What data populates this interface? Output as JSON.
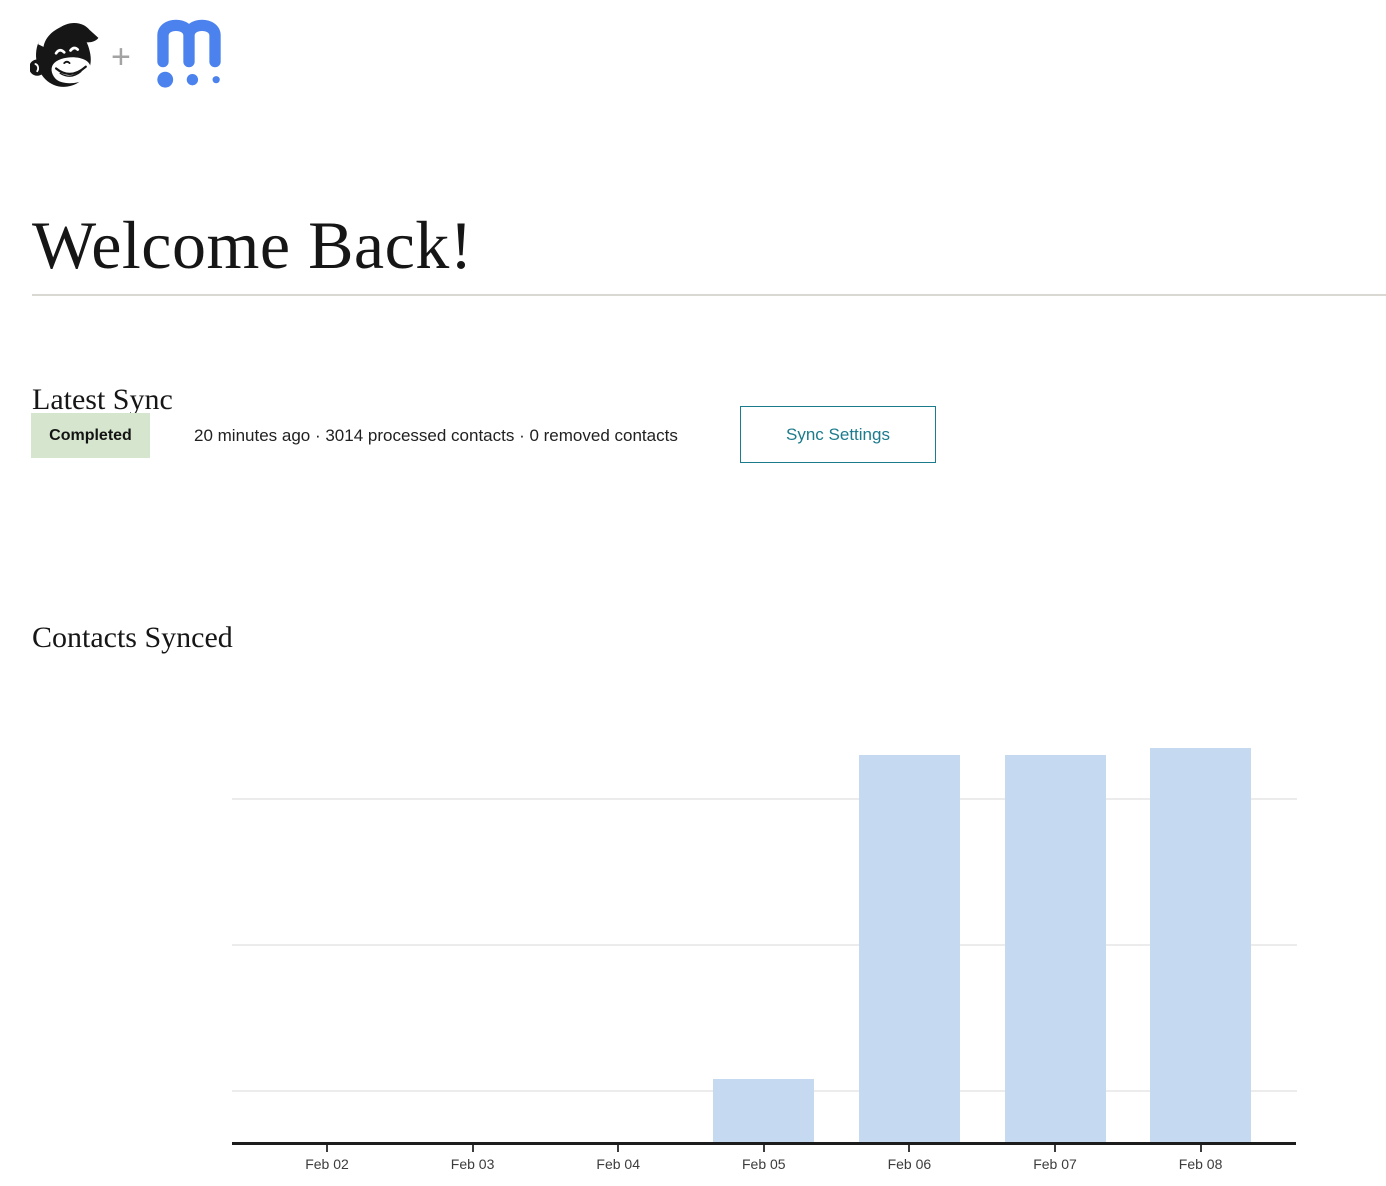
{
  "header": {
    "plus_separator": "+",
    "icons": {
      "mailchimp_logo": "mailchimp-freddie-monkey",
      "partner_logo": "blue-m-with-three-dots"
    }
  },
  "page_title": "Welcome Back!",
  "latest_sync": {
    "heading": "Latest Sync",
    "status_badge": "Completed",
    "summary": "20 minutes ago · 3014 processed contacts · 0 removed contacts",
    "sync_settings_button": "Sync Settings"
  },
  "contacts_synced": {
    "heading": "Contacts Synced"
  },
  "chart_data": {
    "type": "bar",
    "title": "Contacts Synced",
    "categories": [
      "Feb 02",
      "Feb 03",
      "Feb 04",
      "Feb 05",
      "Feb 06",
      "Feb 07",
      "Feb 08"
    ],
    "values": [
      0,
      0,
      0,
      12.9,
      79.5,
      79.5,
      80.9
    ],
    "value_unit": "percent_of_plot_height",
    "xlabel": "",
    "ylabel": "",
    "ylim": [
      0,
      100
    ],
    "y_axis_labels": [],
    "gridlines_y": [
      10.3,
      40.2,
      70.2
    ],
    "grid": true,
    "legend": false,
    "bar_color": "#c5daf1"
  },
  "colors": {
    "accent_teal": "#1c7b8c",
    "badge_bg_green": "#d6e6ce",
    "bar_blue": "#c5daf1",
    "logo_blue": "#4b82ed",
    "axis_line": "#1c1c1c",
    "gridline": "#ececec",
    "divider": "#d9d8d3"
  }
}
